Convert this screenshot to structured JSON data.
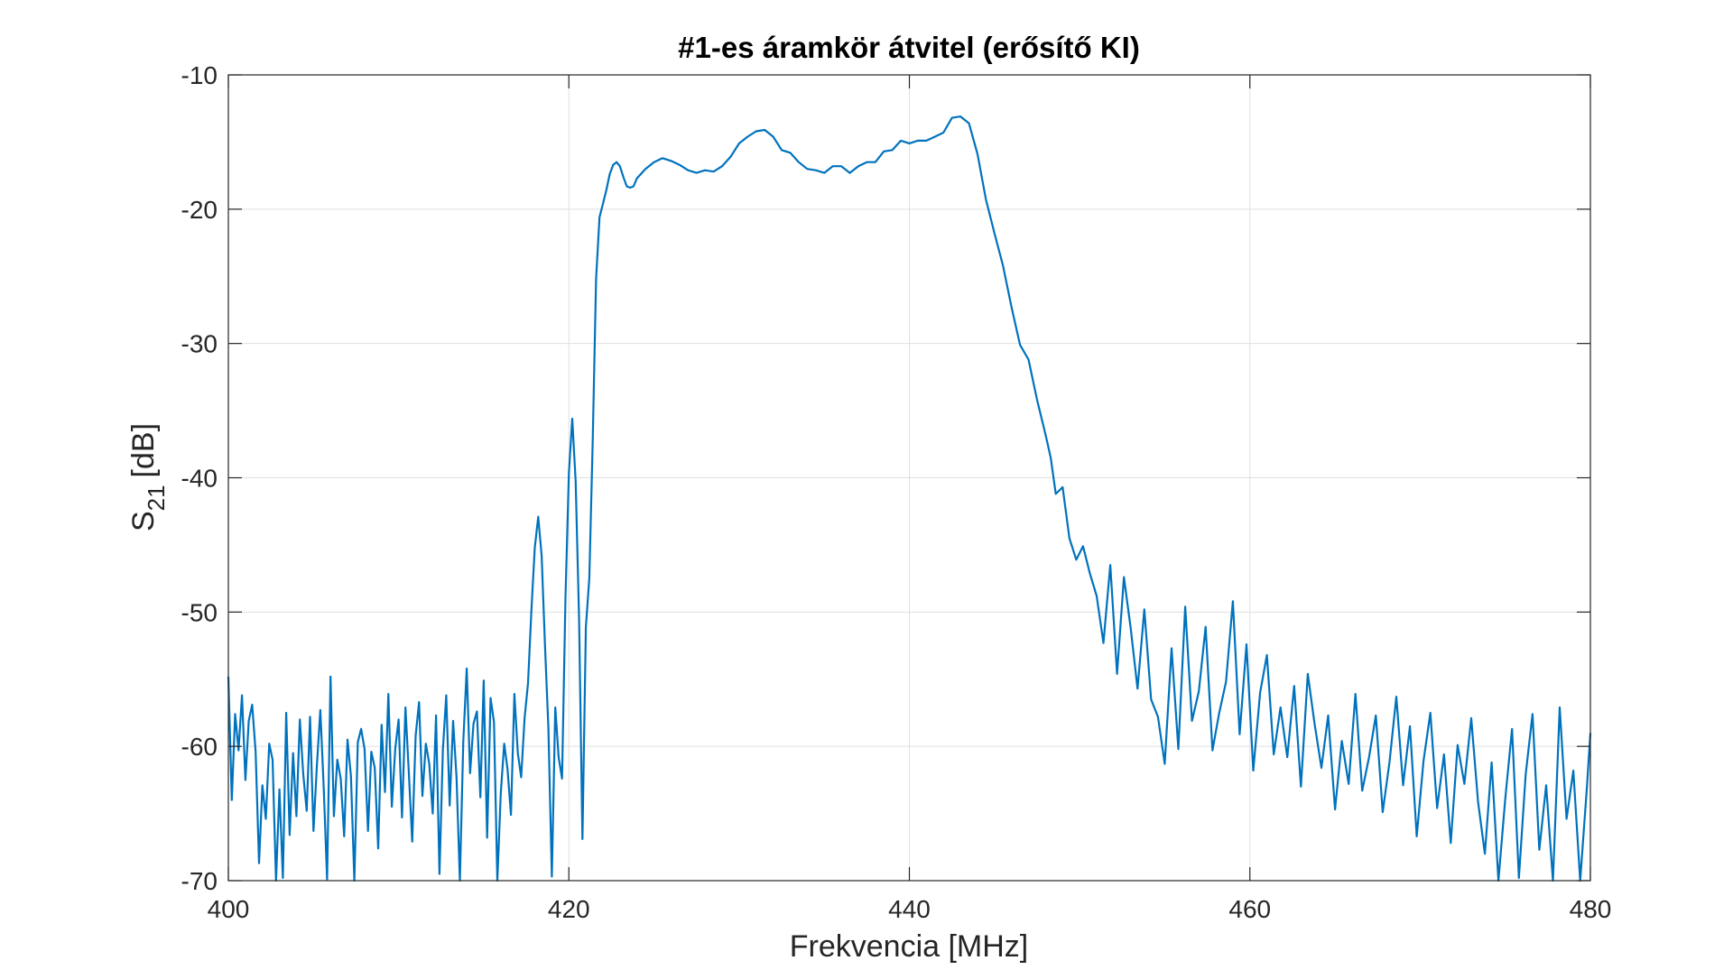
{
  "chart_data": {
    "type": "line",
    "title": "#1-es áramkör átvitel (erősítő KI)",
    "xlabel": "Frekvencia [MHz]",
    "ylabel_main": "S",
    "ylabel_sub": "21",
    "ylabel_unit": "[dB]",
    "xlim": [
      400,
      480
    ],
    "ylim": [
      -70,
      -10
    ],
    "xticks": [
      400,
      420,
      440,
      460,
      480
    ],
    "yticks": [
      -70,
      -60,
      -50,
      -40,
      -30,
      -20,
      -10
    ],
    "xtick_labels": [
      "400",
      "420",
      "440",
      "460",
      "480"
    ],
    "ytick_labels": [
      "-70",
      "-60",
      "-50",
      "-40",
      "-30",
      "-20",
      "-10"
    ],
    "grid": true,
    "line_color": "#0072BD",
    "grid_color": "#dfdfdf",
    "series": [
      {
        "x": [
          400,
          400.2,
          400.4,
          400.6,
          400.8,
          401,
          401.2,
          401.4,
          401.6,
          401.8,
          402,
          402.2,
          402.4,
          402.6,
          402.8,
          403,
          403.2,
          403.4,
          403.6,
          403.8,
          404,
          404.2,
          404.4,
          404.6,
          404.8,
          405,
          405.2,
          405.4,
          405.6,
          405.8,
          406,
          406.2,
          406.4,
          406.6,
          406.8,
          407,
          407.2,
          407.4,
          407.6,
          407.8,
          408,
          408.2,
          408.4,
          408.6,
          408.8,
          409,
          409.2,
          409.4,
          409.6,
          409.8,
          410,
          410.2,
          410.4,
          410.6,
          410.8,
          411,
          411.2,
          411.4,
          411.6,
          411.8,
          412,
          412.2,
          412.4,
          412.6,
          412.8,
          413,
          413.2,
          413.4,
          413.6,
          413.8,
          414,
          414.2,
          414.4,
          414.6,
          414.8,
          415,
          415.2,
          415.4,
          415.6,
          415.8,
          416,
          416.2,
          416.4,
          416.6,
          416.8,
          417,
          417.2,
          417.4,
          417.6,
          417.8,
          418,
          418.2,
          418.4,
          418.6,
          418.8,
          419,
          419.2,
          419.4,
          419.6,
          419.8,
          420,
          420.2,
          420.4,
          420.6,
          420.8,
          421,
          421.2,
          421.4,
          421.6,
          421.8,
          422,
          422.2,
          422.4,
          422.6,
          422.8,
          423,
          423.2,
          423.4,
          423.6,
          423.8,
          424,
          424.5,
          425,
          425.5,
          426,
          426.5,
          427,
          427.5,
          428,
          428.5,
          429,
          429.5,
          430,
          430.5,
          431,
          431.5,
          432,
          432.5,
          433,
          433.5,
          434,
          434.5,
          435,
          435.5,
          436,
          436.5,
          437,
          437.5,
          438,
          438.5,
          439,
          439.5,
          440,
          440.5,
          441,
          441.5,
          442,
          442.5,
          443,
          443.5,
          444,
          444.5,
          445,
          445.5,
          446,
          446.5,
          447,
          447.5,
          448,
          448.3,
          448.6,
          449,
          449.4,
          449.8,
          450.2,
          450.6,
          451,
          451.4,
          451.8,
          452.2,
          452.6,
          453,
          453.4,
          453.8,
          454.2,
          454.6,
          455,
          455.4,
          455.8,
          456.2,
          456.6,
          457,
          457.4,
          457.8,
          458.2,
          458.6,
          459,
          459.4,
          459.8,
          460.2,
          460.6,
          461,
          461.4,
          461.8,
          462.2,
          462.6,
          463,
          463.4,
          463.8,
          464.2,
          464.6,
          465,
          465.4,
          465.8,
          466.2,
          466.6,
          467,
          467.4,
          467.8,
          468.2,
          468.6,
          469,
          469.4,
          469.8,
          470.2,
          470.6,
          471,
          471.4,
          471.8,
          472.2,
          472.6,
          473,
          473.4,
          473.8,
          474.2,
          474.6,
          475,
          475.4,
          475.8,
          476.2,
          476.6,
          477,
          477.4,
          477.8,
          478.2,
          478.6,
          479,
          479.4,
          479.8,
          480
        ],
        "y": [
          -54.8,
          -64,
          -57.6,
          -60.3,
          -56.2,
          -62.5,
          -58.1,
          -56.9,
          -60.4,
          -68.7,
          -62.9,
          -65.4,
          -59.8,
          -61,
          -70,
          -63.2,
          -69.8,
          -57.5,
          -66.6,
          -60.5,
          -65.2,
          -58,
          -62.1,
          -64.8,
          -57.8,
          -66.3,
          -61.4,
          -57.3,
          -63,
          -69.9,
          -54.8,
          -65.2,
          -61,
          -62.4,
          -66.7,
          -59.5,
          -62.2,
          -70,
          -59.7,
          -58.7,
          -60.2,
          -66.3,
          -60.4,
          -61.6,
          -67.6,
          -58.4,
          -63.4,
          -56.1,
          -64.5,
          -60.2,
          -58,
          -65.3,
          -57.1,
          -61.9,
          -67.1,
          -59.2,
          -56.7,
          -63.7,
          -59.8,
          -61.3,
          -65,
          -57.7,
          -69.5,
          -60.2,
          -56.2,
          -64.4,
          -58.1,
          -62.3,
          -70,
          -59.6,
          -54.2,
          -62,
          -58.3,
          -57.4,
          -63.8,
          -55.1,
          -66.8,
          -56.4,
          -58.2,
          -70,
          -63.5,
          -59.8,
          -61.7,
          -65.1,
          -56.1,
          -60.5,
          -62.3,
          -57.9,
          -55.3,
          -49.8,
          -45.2,
          -42.9,
          -45.8,
          -52.5,
          -58.7,
          -69.7,
          -57.1,
          -60.8,
          -62.4,
          -48.9,
          -39.6,
          -35.6,
          -40.3,
          -50.6,
          -66.9,
          -51.1,
          -47.5,
          -37.2,
          -25.2,
          -20.6,
          -19.6,
          -18.6,
          -17.4,
          -16.7,
          -16.5,
          -16.8,
          -17.6,
          -18.3,
          -18.4,
          -18.3,
          -17.7,
          -17,
          -16.5,
          -16.2,
          -16.4,
          -16.7,
          -17.1,
          -17.3,
          -17.1,
          -17.2,
          -16.8,
          -16.1,
          -15.1,
          -14.6,
          -14.2,
          -14.1,
          -14.6,
          -15.6,
          -15.8,
          -16.5,
          -17,
          -17.1,
          -17.3,
          -16.8,
          -16.8,
          -17.3,
          -16.8,
          -16.5,
          -16.5,
          -15.7,
          -15.6,
          -14.9,
          -15.1,
          -14.9,
          -14.9,
          -14.6,
          -14.3,
          -13.2,
          -13.1,
          -13.6,
          -15.9,
          -19.3,
          -21.8,
          -24.2,
          -27.3,
          -30.1,
          -31.2,
          -34.2,
          -36.8,
          -38.5,
          -41.2,
          -40.7,
          -44.5,
          -46.1,
          -45.1,
          -47.1,
          -48.8,
          -52.3,
          -46.5,
          -54.6,
          -47.4,
          -51.2,
          -55.7,
          -49.8,
          -56.5,
          -57.8,
          -61.3,
          -52.7,
          -60.2,
          -49.6,
          -58.1,
          -55.9,
          -51.1,
          -60.3,
          -57.5,
          -55.2,
          -49.2,
          -59.1,
          -52.4,
          -61.8,
          -56,
          -53.2,
          -60.6,
          -57.1,
          -60.8,
          -55.5,
          -63,
          -54.6,
          -58.3,
          -61.6,
          -57.7,
          -64.7,
          -59.6,
          -62.8,
          -56.1,
          -63.3,
          -60.8,
          -57.7,
          -64.9,
          -61.2,
          -56.3,
          -62.9,
          -58.5,
          -66.7,
          -61.1,
          -57.5,
          -64.6,
          -60.6,
          -67.2,
          -59.9,
          -62.8,
          -57.9,
          -64.1,
          -68,
          -61.2,
          -70,
          -63.9,
          -58.7,
          -69.8,
          -62.1,
          -57.6,
          -67.7,
          -62.9,
          -70,
          -57.1,
          -65.4,
          -61.8,
          -70,
          -63,
          -59
        ]
      }
    ]
  }
}
